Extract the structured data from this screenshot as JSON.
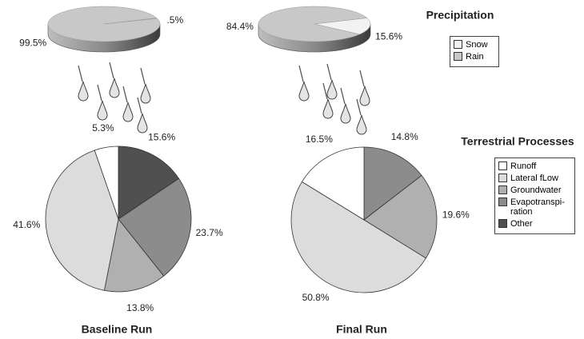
{
  "runs": [
    "Baseline Run",
    "Final Run"
  ],
  "chart_data": [
    {
      "type": "pie3d",
      "title": "Precipitation",
      "categories": [
        "Snow",
        "Rain"
      ],
      "colors": [
        "#f2f2f2",
        "#c8c8c8"
      ],
      "series": [
        {
          "values": [
            0.5,
            99.5
          ],
          "value_labels": [
            ".5%",
            "99.5%"
          ]
        },
        {
          "values": [
            15.6,
            84.4
          ],
          "value_labels": [
            "15.6%",
            "84.4%"
          ]
        }
      ]
    },
    {
      "type": "pie",
      "title": "Terrestrial Processes",
      "categories": [
        "Runoff",
        "Lateral fLow",
        "Groundwater",
        "Evapotranspi-ration",
        "Other"
      ],
      "colors": [
        "#ffffff",
        "#dcdcdc",
        "#b0b0b0",
        "#8c8c8c",
        "#505050"
      ],
      "series": [
        {
          "values": [
            5.3,
            41.6,
            13.8,
            23.7,
            15.6
          ],
          "value_labels": [
            "5.3%",
            "41.6%",
            "13.8%",
            "23.7%",
            "15.6%"
          ]
        },
        {
          "values": [
            16.5,
            50.8,
            19.6,
            14.8,
            null
          ],
          "value_labels": [
            "16.5%",
            "50.8%",
            "19.6%",
            "14.8%",
            null
          ]
        }
      ]
    }
  ]
}
